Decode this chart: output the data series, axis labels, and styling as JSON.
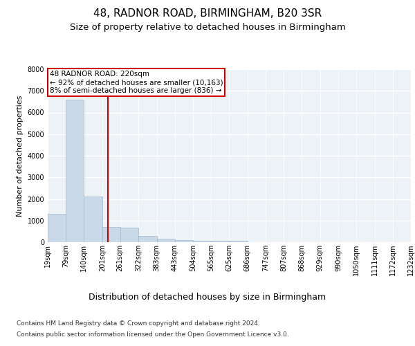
{
  "title1": "48, RADNOR ROAD, BIRMINGHAM, B20 3SR",
  "title2": "Size of property relative to detached houses in Birmingham",
  "xlabel": "Distribution of detached houses by size in Birmingham",
  "ylabel": "Number of detached properties",
  "footer1": "Contains HM Land Registry data © Crown copyright and database right 2024.",
  "footer2": "Contains public sector information licensed under the Open Government Licence v3.0.",
  "annotation_line1": "48 RADNOR ROAD: 220sqm",
  "annotation_line2": "← 92% of detached houses are smaller (10,163)",
  "annotation_line3": "8% of semi-detached houses are larger (836) →",
  "bin_edges": [
    19,
    79,
    140,
    201,
    261,
    322,
    383,
    443,
    504,
    565,
    625,
    686,
    747,
    807,
    868,
    929,
    990,
    1050,
    1111,
    1172,
    1232
  ],
  "bar_heights": [
    1300,
    6600,
    2100,
    700,
    680,
    300,
    150,
    100,
    80,
    80,
    50,
    0,
    0,
    0,
    0,
    0,
    0,
    0,
    0,
    0
  ],
  "bar_color": "#c9d9e8",
  "bar_edge_color": "#a0b8cc",
  "vline_color": "#cc0000",
  "vline_x": 220,
  "annotation_box_color": "#cc0000",
  "background_color": "#edf2f7",
  "ylim": [
    0,
    8000
  ],
  "yticks": [
    0,
    1000,
    2000,
    3000,
    4000,
    5000,
    6000,
    7000,
    8000
  ],
  "grid_color": "#ffffff",
  "title1_fontsize": 11,
  "title2_fontsize": 9.5,
  "ylabel_fontsize": 8,
  "tick_fontsize": 7,
  "annotation_fontsize": 7.5,
  "xlabel_fontsize": 9,
  "footer_fontsize": 6.5
}
